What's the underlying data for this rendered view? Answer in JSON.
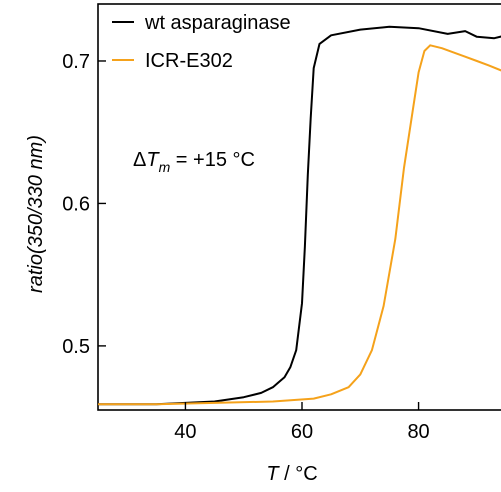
{
  "chart_data": {
    "type": "line",
    "xlabel_symbol": "T",
    "xlabel_unit": " / °C",
    "ylabel": "ratio(350/330 nm)",
    "xlim": [
      25,
      95
    ],
    "ylim": [
      0.455,
      0.74
    ],
    "x_ticks": [
      40,
      60,
      80
    ],
    "y_ticks": [
      0.5,
      0.6,
      0.7
    ],
    "x_tick_labels": [
      "40",
      "60",
      "80"
    ],
    "y_tick_labels": [
      "0.5",
      "0.6",
      "0.7"
    ],
    "grid": false,
    "legend_position": "top-left",
    "annotation": {
      "delta": "Δ",
      "symbol": "T",
      "subscript": "m",
      "value": " = +15 °C"
    },
    "series": [
      {
        "name": "wt asparaginase",
        "color": "#000000",
        "points": [
          [
            25,
            0.459
          ],
          [
            30,
            0.459
          ],
          [
            35,
            0.459
          ],
          [
            40,
            0.46
          ],
          [
            45,
            0.461
          ],
          [
            50,
            0.464
          ],
          [
            53,
            0.467
          ],
          [
            55,
            0.471
          ],
          [
            57,
            0.478
          ],
          [
            58,
            0.485
          ],
          [
            59,
            0.497
          ],
          [
            60,
            0.53
          ],
          [
            60.5,
            0.57
          ],
          [
            61,
            0.62
          ],
          [
            61.5,
            0.66
          ],
          [
            62,
            0.695
          ],
          [
            63,
            0.712
          ],
          [
            65,
            0.718
          ],
          [
            70,
            0.722
          ],
          [
            75,
            0.724
          ],
          [
            80,
            0.723
          ],
          [
            85,
            0.719
          ],
          [
            88,
            0.721
          ],
          [
            90,
            0.717
          ],
          [
            93,
            0.716
          ],
          [
            95,
            0.718
          ]
        ]
      },
      {
        "name": "ICR-E302",
        "color": "#f5a21b",
        "points": [
          [
            25,
            0.459
          ],
          [
            35,
            0.459
          ],
          [
            45,
            0.46
          ],
          [
            55,
            0.461
          ],
          [
            62,
            0.463
          ],
          [
            65,
            0.466
          ],
          [
            68,
            0.471
          ],
          [
            70,
            0.48
          ],
          [
            72,
            0.497
          ],
          [
            74,
            0.528
          ],
          [
            76,
            0.575
          ],
          [
            77.5,
            0.625
          ],
          [
            79,
            0.665
          ],
          [
            80,
            0.692
          ],
          [
            81,
            0.707
          ],
          [
            82,
            0.711
          ],
          [
            84,
            0.709
          ],
          [
            86,
            0.706
          ],
          [
            88,
            0.703
          ],
          [
            90,
            0.7
          ],
          [
            92,
            0.697
          ],
          [
            95,
            0.692
          ]
        ]
      }
    ]
  }
}
